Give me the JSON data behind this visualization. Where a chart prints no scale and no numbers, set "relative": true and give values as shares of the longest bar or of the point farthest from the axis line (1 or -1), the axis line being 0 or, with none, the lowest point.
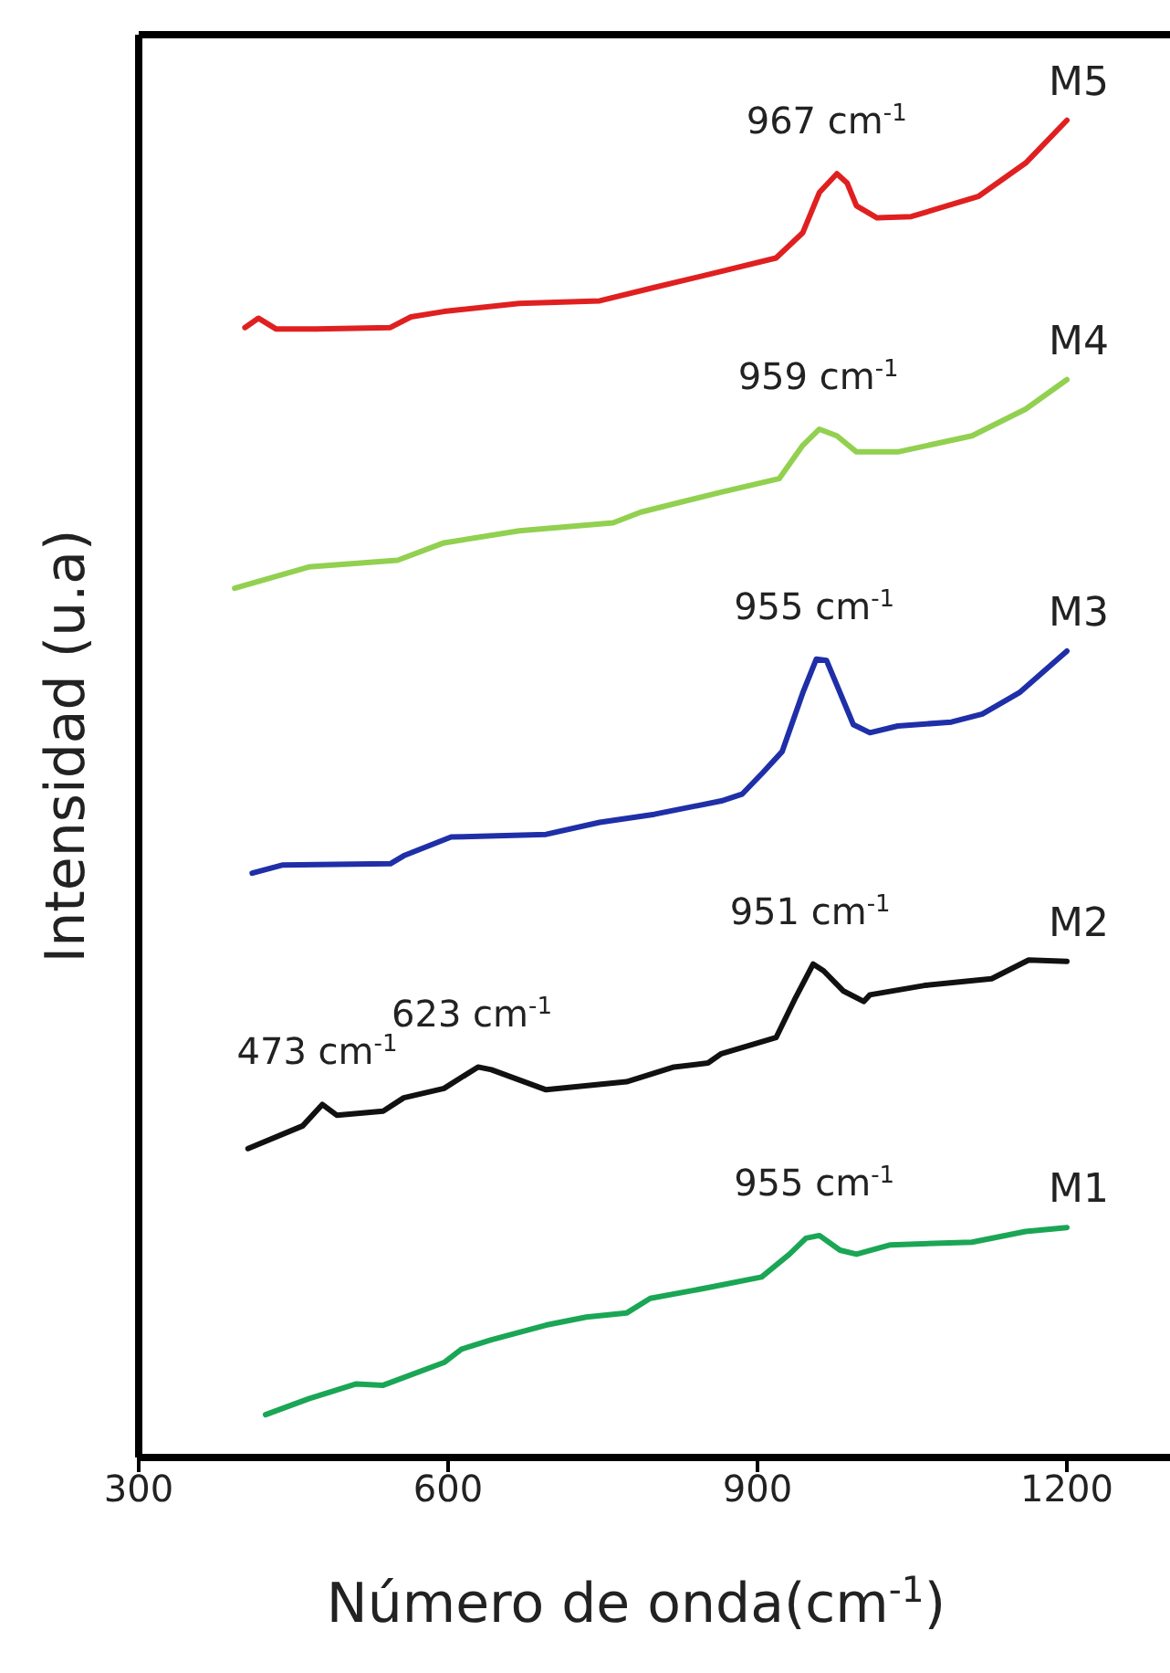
{
  "chart_data": {
    "type": "line",
    "relative": true,
    "xlabel": "Número de onda(cm$^{-1}$)",
    "ylabel": "Intensidad (u.a)",
    "xlim": [
      300,
      1300
    ],
    "xticks": [
      300,
      600,
      900,
      1200
    ],
    "tick_labels": "x",
    "grid": false,
    "legend": false,
    "marker": "none",
    "line_style": "solid",
    "series": [
      {
        "name": "M5",
        "color": "#e02020",
        "x": [
          403,
          416,
          433,
          472,
          544,
          564,
          596,
          669,
          747,
          800,
          865,
          918,
          944,
          960,
          977,
          987,
          996,
          1016,
          1049,
          1114,
          1160,
          1200
        ],
        "values": [
          0.845,
          0.852,
          0.844,
          0.844,
          0.845,
          0.853,
          0.857,
          0.863,
          0.865,
          0.875,
          0.887,
          0.897,
          0.916,
          0.946,
          0.96,
          0.953,
          0.936,
          0.927,
          0.928,
          0.943,
          0.968,
          1.0
        ]
      },
      {
        "name": "M4",
        "color": "#92d050",
        "x": [
          393,
          465,
          551,
          596,
          669,
          760,
          787,
          865,
          921,
          944,
          960,
          977,
          996,
          1036,
          1108,
          1160,
          1200
        ],
        "values": [
          0.65,
          0.666,
          0.671,
          0.684,
          0.693,
          0.699,
          0.707,
          0.722,
          0.732,
          0.757,
          0.769,
          0.764,
          0.752,
          0.752,
          0.764,
          0.784,
          0.806
        ]
      },
      {
        "name": "M3",
        "color": "#1f2fa8",
        "x": [
          410,
          439,
          544,
          557,
          603,
          695,
          747,
          800,
          865,
          885,
          905,
          924,
          944,
          957,
          967,
          980,
          993,
          1009,
          1036,
          1088,
          1118,
          1154,
          1200
        ],
        "values": [
          0.437,
          0.443,
          0.444,
          0.45,
          0.464,
          0.466,
          0.475,
          0.481,
          0.491,
          0.496,
          0.512,
          0.528,
          0.572,
          0.597,
          0.596,
          0.572,
          0.548,
          0.542,
          0.547,
          0.55,
          0.556,
          0.572,
          0.603
        ]
      },
      {
        "name": "M2",
        "color": "#111111",
        "x": [
          406,
          459,
          478,
          492,
          537,
          557,
          596,
          629,
          642,
          695,
          773,
          819,
          852,
          865,
          918,
          937,
          954,
          964,
          983,
          1003,
          1009,
          1062,
          1127,
          1163,
          1200
        ],
        "values": [
          0.231,
          0.248,
          0.264,
          0.256,
          0.259,
          0.269,
          0.276,
          0.292,
          0.29,
          0.275,
          0.281,
          0.292,
          0.295,
          0.302,
          0.314,
          0.344,
          0.369,
          0.364,
          0.349,
          0.341,
          0.346,
          0.353,
          0.358,
          0.372,
          0.371
        ]
      },
      {
        "name": "M1",
        "color": "#1aa655",
        "x": [
          423,
          465,
          511,
          537,
          596,
          613,
          642,
          695,
          734,
          773,
          796,
          852,
          904,
          931,
          947,
          960,
          980,
          996,
          1029,
          1108,
          1160,
          1200
        ],
        "values": [
          0.032,
          0.044,
          0.055,
          0.054,
          0.071,
          0.081,
          0.088,
          0.099,
          0.105,
          0.108,
          0.119,
          0.127,
          0.135,
          0.152,
          0.164,
          0.166,
          0.155,
          0.152,
          0.159,
          0.161,
          0.169,
          0.172
        ]
      }
    ],
    "annotations": [
      {
        "text": "967 cm$^{-1}$",
        "x": 967,
        "y": 0.96
      },
      {
        "text": "959 cm$^{-1}$",
        "x": 959,
        "y": 0.769
      },
      {
        "text": "955 cm$^{-1}$",
        "x": 955,
        "y": 0.597
      },
      {
        "text": "951 cm$^{-1}$",
        "x": 951,
        "y": 0.369
      },
      {
        "text": "623 cm$^{-1}$",
        "x": 623,
        "y": 0.292
      },
      {
        "text": "473 cm$^{-1}$",
        "x": 473,
        "y": 0.264
      },
      {
        "text": "955 cm$^{-1}$",
        "x": 955,
        "y": 0.166
      }
    ]
  }
}
